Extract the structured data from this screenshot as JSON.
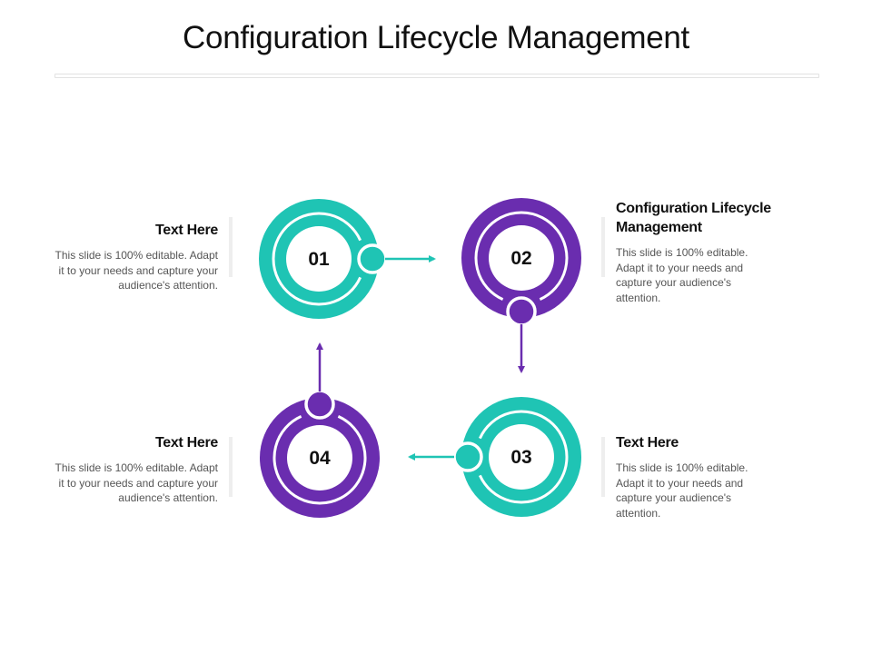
{
  "title": "Configuration Lifecycle Management",
  "colors": {
    "teal": "#1fc4b4",
    "purple": "#6a2daf"
  },
  "steps": [
    {
      "number": "01",
      "color": "teal",
      "heading": "Text Here",
      "body": "This slide is 100% editable. Adapt it to your needs and capture your audience's attention."
    },
    {
      "number": "02",
      "color": "purple",
      "heading": "Configuration Lifecycle Management",
      "body": "This slide is 100% editable. Adapt it to your needs and capture your audience's attention."
    },
    {
      "number": "03",
      "color": "teal",
      "heading": "Text Here",
      "body": "This slide is 100% editable. Adapt it to your needs and capture your audience's attention."
    },
    {
      "number": "04",
      "color": "purple",
      "heading": "Text Here",
      "body": "This slide is 100% editable. Adapt it to your needs and capture your audience's attention."
    }
  ]
}
